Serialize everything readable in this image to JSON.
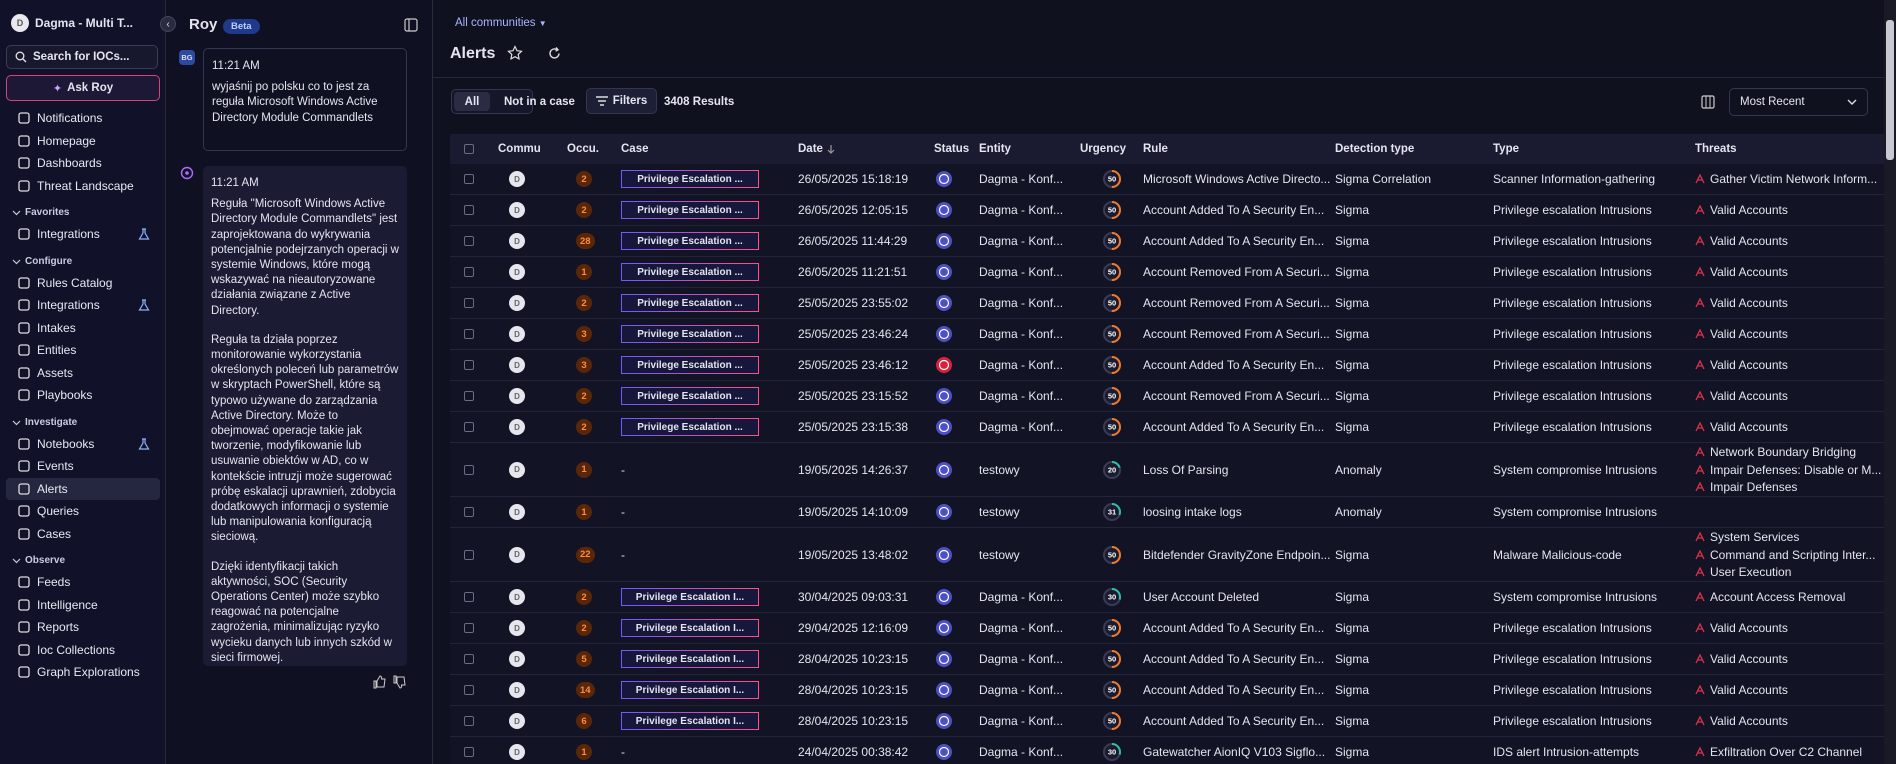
{
  "sidebar": {
    "workspace": "Dagma - Multi T...",
    "search": "Search for IOCs...",
    "ask": "Ask Roy",
    "items": [
      "Notifications",
      "Homepage",
      "Dashboards",
      "Threat Landscape"
    ],
    "sections": [
      {
        "title": "Favorites",
        "items": [
          "Integrations"
        ]
      },
      {
        "title": "Configure",
        "items": [
          "Rules Catalog",
          "Integrations",
          "Intakes",
          "Entities",
          "Assets",
          "Playbooks"
        ]
      },
      {
        "title": "Investigate",
        "items": [
          "Notebooks",
          "Events",
          "Alerts",
          "Queries",
          "Cases"
        ]
      },
      {
        "title": "Observe",
        "items": [
          "Feeds",
          "Intelligence",
          "Reports",
          "Ioc Collections",
          "Graph Explorations"
        ]
      }
    ]
  },
  "chat": {
    "title": "Roy",
    "badge": "Beta",
    "user_avatar": "BG",
    "user_time": "11:21 AM",
    "user_message": "wyjaśnij po polsku co to jest za reguła Microsoft Windows Active Directory Module Commandlets",
    "bot_time": "11:21 AM",
    "bot_paragraphs": [
      "Reguła \"Microsoft Windows Active Directory Module Commandlets\" jest zaprojektowana do wykrywania potencjalnie podejrzanych operacji w systemie Windows, które mogą wskazywać na nieautoryzowane działania związane z Active Directory.",
      "Reguła ta działa poprzez monitorowanie wykorzystania określonych poleceń lub parametrów w skryptach PowerShell, które są typowo używane do zarządzania Active Directory. Może to obejmować operacje takie jak tworzenie, modyfikowanie lub usuwanie obiektów w AD, co w kontekście intruzji może sugerować próbę eskalacji uprawnień, zdobycia dodatkowych informacji o systemie lub manipulowania konfiguracją sieciową.",
      "Dzięki identyfikacji takich aktywności, SOC (Security Operations Center) może szybko reagować na potencjalne zagrożenia, minimalizując ryzyko wycieku danych lub innych szkód w sieci firmowej."
    ]
  },
  "main": {
    "community": "All communities",
    "title": "Alerts",
    "tabs": [
      "All",
      "Not in a case"
    ],
    "filters": "Filters",
    "results": "3408 Results",
    "sort": "Most Recent",
    "columns": [
      "Commu",
      "Occu.",
      "Case",
      "Date",
      "Status",
      "Entity",
      "Urgency",
      "Rule",
      "Detection type",
      "Type",
      "Threats"
    ],
    "rows": [
      {
        "community": "D",
        "occurrences": 2,
        "case": "Privilege Escalation ...",
        "date": "26/05/2025 15:18:19",
        "entity": "Dagma - Konf...",
        "urgency": 50,
        "rule": "Microsoft Windows Active Directo...",
        "detection_type": "Sigma Correlation",
        "type": "Scanner Information-gathering",
        "threats": [
          "Gather Victim Network Inform..."
        ]
      },
      {
        "community": "D",
        "occurrences": 2,
        "case": "Privilege Escalation ...",
        "date": "26/05/2025 12:05:15",
        "entity": "Dagma - Konf...",
        "urgency": 50,
        "rule": "Account Added To A Security En...",
        "detection_type": "Sigma",
        "type": "Privilege escalation Intrusions",
        "threats": [
          "Valid Accounts"
        ]
      },
      {
        "community": "D",
        "occurrences": 28,
        "case": "Privilege Escalation ...",
        "date": "26/05/2025 11:44:29",
        "entity": "Dagma - Konf...",
        "urgency": 50,
        "rule": "Account Added To A Security En...",
        "detection_type": "Sigma",
        "type": "Privilege escalation Intrusions",
        "threats": [
          "Valid Accounts"
        ]
      },
      {
        "community": "D",
        "occurrences": 1,
        "case": "Privilege Escalation ...",
        "date": "26/05/2025 11:21:51",
        "entity": "Dagma - Konf...",
        "urgency": 50,
        "rule": "Account Removed From A Securi...",
        "detection_type": "Sigma",
        "type": "Privilege escalation Intrusions",
        "threats": [
          "Valid Accounts"
        ]
      },
      {
        "community": "D",
        "occurrences": 2,
        "case": "Privilege Escalation ...",
        "date": "25/05/2025 23:55:02",
        "entity": "Dagma - Konf...",
        "urgency": 50,
        "rule": "Account Removed From A Securi...",
        "detection_type": "Sigma",
        "type": "Privilege escalation Intrusions",
        "threats": [
          "Valid Accounts"
        ]
      },
      {
        "community": "D",
        "occurrences": 3,
        "case": "Privilege Escalation ...",
        "date": "25/05/2025 23:46:24",
        "entity": "Dagma - Konf...",
        "urgency": 50,
        "rule": "Account Removed From A Securi...",
        "detection_type": "Sigma",
        "type": "Privilege escalation Intrusions",
        "threats": [
          "Valid Accounts"
        ]
      },
      {
        "community": "D",
        "occurrences": 3,
        "case": "Privilege Escalation ...",
        "date": "25/05/2025 23:46:12",
        "entity": "Dagma - Konf...",
        "urgency": 50,
        "rule": "Account Added To A Security En...",
        "detection_type": "Sigma",
        "type": "Privilege escalation Intrusions",
        "threats": [
          "Valid Accounts"
        ]
      },
      {
        "community": "D",
        "occurrences": 2,
        "case": "Privilege Escalation ...",
        "date": "25/05/2025 23:15:52",
        "entity": "Dagma - Konf...",
        "urgency": 50,
        "rule": "Account Removed From A Securi...",
        "detection_type": "Sigma",
        "type": "Privilege escalation Intrusions",
        "threats": [
          "Valid Accounts"
        ]
      },
      {
        "community": "D",
        "occurrences": 2,
        "case": "Privilege Escalation ...",
        "date": "25/05/2025 23:15:38",
        "entity": "Dagma - Konf...",
        "urgency": 50,
        "rule": "Account Added To A Security En...",
        "detection_type": "Sigma",
        "type": "Privilege escalation Intrusions",
        "threats": [
          "Valid Accounts"
        ]
      },
      {
        "community": "D",
        "occurrences": 1,
        "case": "-",
        "date": "19/05/2025 14:26:37",
        "entity": "testowy",
        "urgency": 20,
        "rule": "Loss Of Parsing",
        "detection_type": "Anomaly",
        "type": "System compromise Intrusions",
        "threats": [
          "Network Boundary Bridging",
          "Impair Defenses: Disable or M...",
          "Impair Defenses"
        ]
      },
      {
        "community": "D",
        "occurrences": 1,
        "case": "-",
        "date": "19/05/2025 14:10:09",
        "entity": "testowy",
        "urgency": 31,
        "rule": "loosing intake logs",
        "detection_type": "Anomaly",
        "type": "System compromise Intrusions",
        "threats": []
      },
      {
        "community": "D",
        "occurrences": 22,
        "case": "-",
        "date": "19/05/2025 13:48:02",
        "entity": "testowy",
        "urgency": 50,
        "rule": "Bitdefender GravityZone Endpoin...",
        "detection_type": "Sigma",
        "type": "Malware Malicious-code",
        "threats": [
          "System Services",
          "Command and Scripting Inter...",
          "User Execution"
        ]
      },
      {
        "community": "D",
        "occurrences": 2,
        "case": "Privilege Escalation I...",
        "date": "30/04/2025 09:03:31",
        "entity": "Dagma - Konf...",
        "urgency": 30,
        "rule": "User Account Deleted",
        "detection_type": "Sigma",
        "type": "System compromise Intrusions",
        "threats": [
          "Account Access Removal"
        ]
      },
      {
        "community": "D",
        "occurrences": 2,
        "case": "Privilege Escalation I...",
        "date": "29/04/2025 12:16:09",
        "entity": "Dagma - Konf...",
        "urgency": 50,
        "rule": "Account Added To A Security En...",
        "detection_type": "Sigma",
        "type": "Privilege escalation Intrusions",
        "threats": [
          "Valid Accounts"
        ]
      },
      {
        "community": "D",
        "occurrences": 5,
        "case": "Privilege Escalation I...",
        "date": "28/04/2025 10:23:15",
        "entity": "Dagma - Konf...",
        "urgency": 50,
        "rule": "Account Added To A Security En...",
        "detection_type": "Sigma",
        "type": "Privilege escalation Intrusions",
        "threats": [
          "Valid Accounts"
        ]
      },
      {
        "community": "D",
        "occurrences": 14,
        "case": "Privilege Escalation I...",
        "date": "28/04/2025 10:23:15",
        "entity": "Dagma - Konf...",
        "urgency": 50,
        "rule": "Account Added To A Security En...",
        "detection_type": "Sigma",
        "type": "Privilege escalation Intrusions",
        "threats": [
          "Valid Accounts"
        ]
      },
      {
        "community": "D",
        "occurrences": 6,
        "case": "Privilege Escalation I...",
        "date": "28/04/2025 10:23:15",
        "entity": "Dagma - Konf...",
        "urgency": 50,
        "rule": "Account Added To A Security En...",
        "detection_type": "Sigma",
        "type": "Privilege escalation Intrusions",
        "threats": [
          "Valid Accounts"
        ]
      },
      {
        "community": "D",
        "occurrences": 1,
        "case": "-",
        "date": "24/04/2025 00:38:42",
        "entity": "Dagma - Konf...",
        "urgency": 30,
        "rule": "Gatewatcher AionIQ V103 Sigflo...",
        "detection_type": "Sigma",
        "type": "IDS alert Intrusion-attempts",
        "threats": [
          "Exfiltration Over C2 Channel"
        ]
      }
    ]
  }
}
